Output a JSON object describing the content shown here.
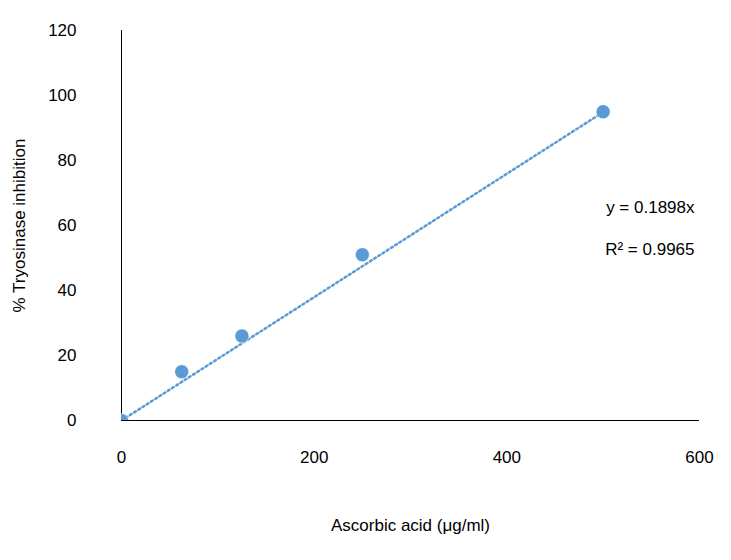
{
  "chart_data": {
    "type": "scatter",
    "x_label": "Ascorbic acid (μg/ml)",
    "y_label": "% Tryosinase inhibition",
    "x": [
      0,
      62.5,
      125,
      250,
      500
    ],
    "values": [
      0,
      15,
      26,
      51,
      95
    ],
    "color": "#5b9bd5",
    "marker": "circle",
    "trendline": {
      "x": [
        0,
        500
      ],
      "values": [
        0,
        94.9
      ],
      "line_style": "dotted",
      "color": "#5b9bd5"
    },
    "annotations": [
      "y = 0.1898x",
      "R² = 0.9965"
    ],
    "xlim": [
      0,
      600
    ],
    "xticks": [
      0,
      200,
      400,
      600
    ],
    "ylim": [
      0,
      120
    ],
    "yticks": [
      0,
      20,
      40,
      60,
      80,
      100,
      120
    ],
    "grid": false
  }
}
